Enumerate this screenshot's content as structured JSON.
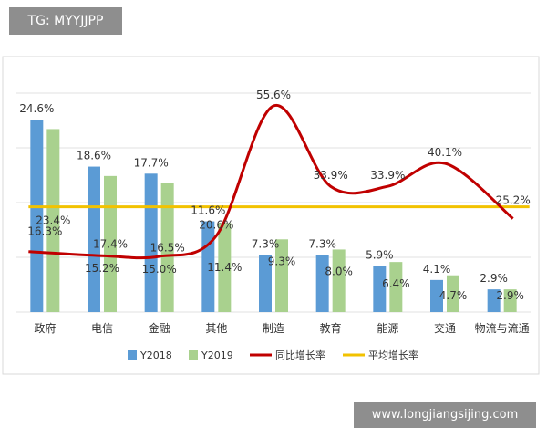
{
  "overlay": {
    "top_tag": "TG: MYYJJPP",
    "bottom_watermark": "www.longjiangsijing.com"
  },
  "chart_data": {
    "type": "bar",
    "title": "",
    "xlabel": "",
    "ylabel": "",
    "categories": [
      "政府",
      "电信",
      "金融",
      "其他",
      "制造",
      "教育",
      "能源",
      "交通",
      "物流与流通"
    ],
    "series": [
      {
        "name": "Y2018",
        "type": "bar",
        "color": "#5b9bd5",
        "values": [
          24.6,
          18.6,
          17.7,
          11.6,
          7.3,
          7.3,
          5.9,
          4.1,
          2.9
        ],
        "labels": [
          "24.6%",
          "18.6%",
          "17.7%",
          "11.6%",
          "7.3%",
          "7.3%",
          "5.9%",
          "4.1%",
          "2.9%"
        ]
      },
      {
        "name": "Y2019",
        "type": "bar",
        "color": "#a9d18e",
        "values": [
          23.4,
          17.4,
          16.5,
          11.4,
          9.3,
          8.0,
          6.4,
          4.7,
          2.9
        ],
        "labels": [
          "23.4%",
          "17.4%",
          "16.5%",
          "11.4%",
          "9.3%",
          "8.0%",
          "6.4%",
          "4.7%",
          "2.9%"
        ]
      },
      {
        "name": "同比增长率",
        "type": "line",
        "color": "#c00000",
        "values": [
          16.3,
          15.2,
          15.0,
          20.6,
          55.6,
          33.9,
          33.9,
          40.1,
          25.2
        ],
        "labels": [
          "16.3%",
          "15.2%",
          "15.0%",
          "20.6%",
          "55.6%",
          "33.9%",
          "33.9%",
          "40.1%",
          "25.2%"
        ]
      },
      {
        "name": "平均增长率",
        "type": "line",
        "color": "#f2c200",
        "values": [
          28.4,
          28.4,
          28.4,
          28.4,
          28.4,
          28.4,
          28.4,
          28.4,
          28.4
        ]
      }
    ],
    "bar_axis_ylim": [
      0,
      28
    ],
    "line_axis_ylim": [
      0,
      62
    ],
    "grid": true,
    "legend_position": "bottom"
  }
}
